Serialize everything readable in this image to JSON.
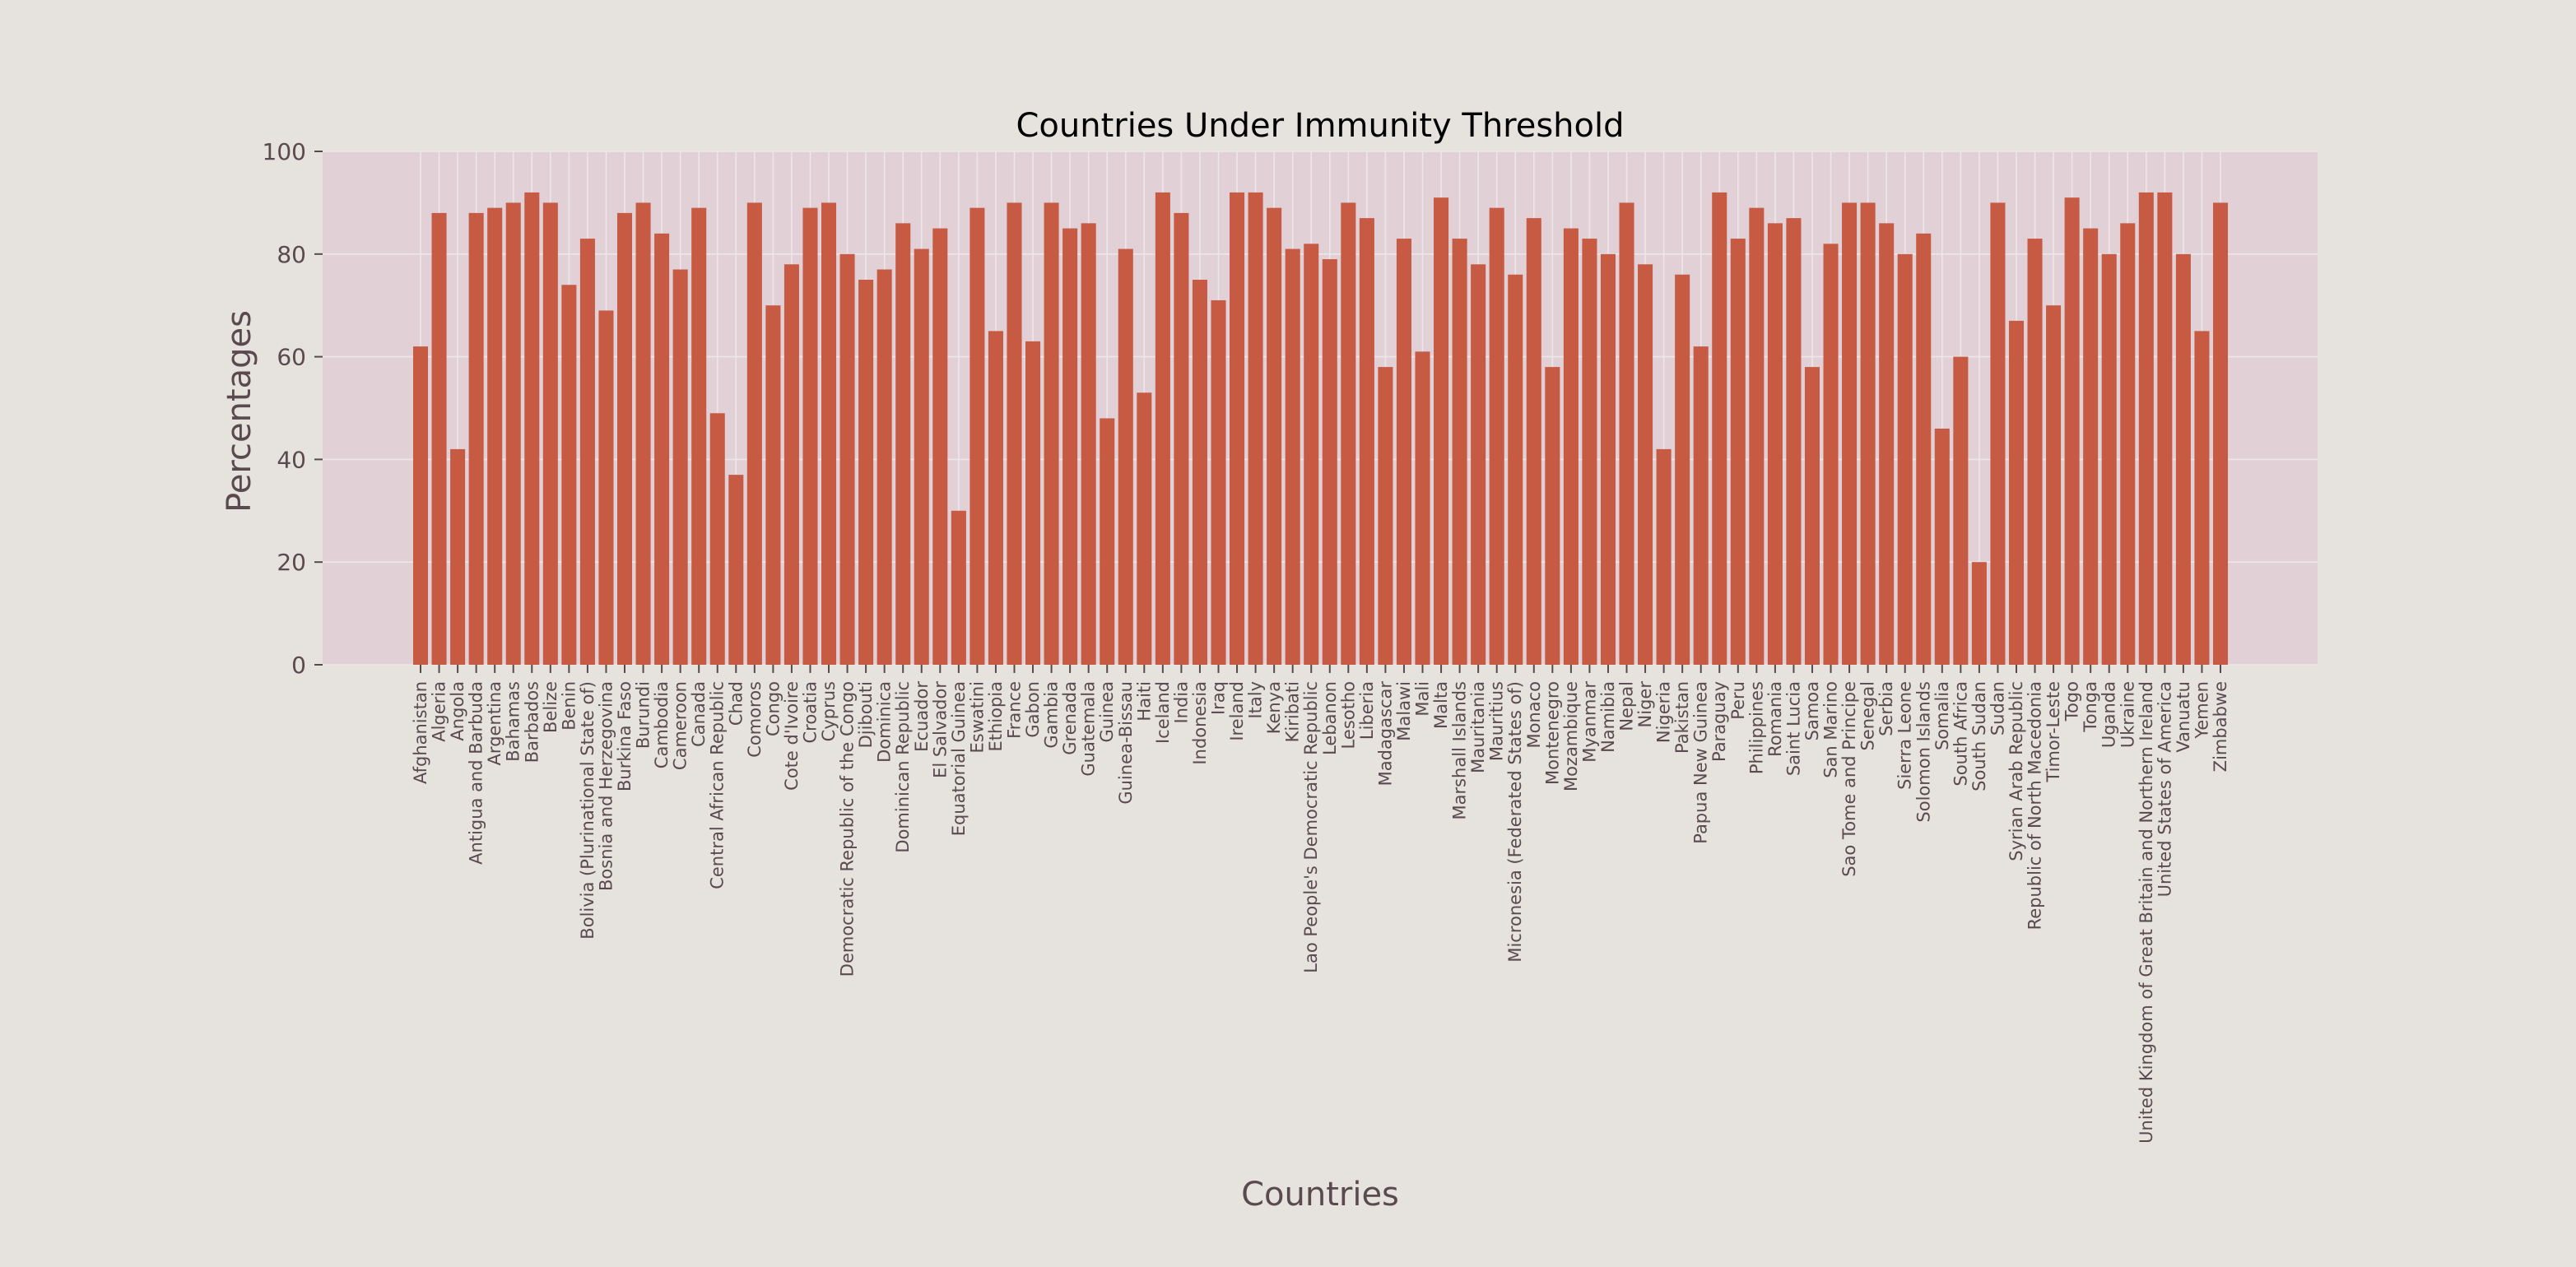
{
  "chart_data": {
    "type": "bar",
    "title": "Countries Under Immunity Threshold",
    "xlabel": "Countries",
    "ylabel": "Percentages",
    "ylim": [
      0,
      100
    ],
    "yticks": [
      0,
      20,
      40,
      60,
      80,
      100
    ],
    "grid": true,
    "categories": [
      "Afghanistan",
      "Algeria",
      "Angola",
      "Antigua and Barbuda",
      "Argentina",
      "Bahamas",
      "Barbados",
      "Belize",
      "Benin",
      "Bolivia (Plurinational State of)",
      "Bosnia and Herzegovina",
      "Burkina Faso",
      "Burundi",
      "Cambodia",
      "Cameroon",
      "Canada",
      "Central African Republic",
      "Chad",
      "Comoros",
      "Congo",
      "Cote d'Ivoire",
      "Croatia",
      "Cyprus",
      "Democratic Republic of the Congo",
      "Djibouti",
      "Dominica",
      "Dominican Republic",
      "Ecuador",
      "El Salvador",
      "Equatorial Guinea",
      "Eswatini",
      "Ethiopia",
      "France",
      "Gabon",
      "Gambia",
      "Grenada",
      "Guatemala",
      "Guinea",
      "Guinea-Bissau",
      "Haiti",
      "Iceland",
      "India",
      "Indonesia",
      "Iraq",
      "Ireland",
      "Italy",
      "Kenya",
      "Kiribati",
      "Lao People's Democratic Republic",
      "Lebanon",
      "Lesotho",
      "Liberia",
      "Madagascar",
      "Malawi",
      "Mali",
      "Malta",
      "Marshall Islands",
      "Mauritania",
      "Mauritius",
      "Micronesia (Federated States of)",
      "Monaco",
      "Montenegro",
      "Mozambique",
      "Myanmar",
      "Namibia",
      "Nepal",
      "Niger",
      "Nigeria",
      "Pakistan",
      "Papua New Guinea",
      "Paraguay",
      "Peru",
      "Philippines",
      "Romania",
      "Saint Lucia",
      "Samoa",
      "San Marino",
      "Sao Tome and Principe",
      "Senegal",
      "Serbia",
      "Sierra Leone",
      "Solomon Islands",
      "Somalia",
      "South Africa",
      "South Sudan",
      "Sudan",
      "Syrian Arab Republic",
      "Republic of North Macedonia",
      "Timor-Leste",
      "Togo",
      "Tonga",
      "Uganda",
      "Ukraine",
      "United Kingdom of Great Britain and Northern Ireland",
      "United States of America",
      "Vanuatu",
      "Yemen",
      "Zimbabwe"
    ],
    "values": [
      62,
      88,
      42,
      88,
      89,
      90,
      92,
      90,
      74,
      83,
      69,
      88,
      90,
      84,
      77,
      89,
      49,
      37,
      90,
      70,
      78,
      89,
      90,
      80,
      75,
      77,
      86,
      81,
      85,
      30,
      89,
      65,
      90,
      63,
      90,
      85,
      86,
      48,
      81,
      53,
      92,
      88,
      75,
      71,
      92,
      92,
      89,
      81,
      82,
      79,
      90,
      87,
      58,
      83,
      61,
      91,
      83,
      78,
      89,
      76,
      87,
      58,
      85,
      83,
      80,
      90,
      78,
      42,
      76,
      62,
      92,
      83,
      89,
      86,
      87,
      58,
      82,
      90,
      90,
      86,
      80,
      84,
      46,
      60,
      20,
      90,
      67,
      83,
      70,
      91,
      85,
      80,
      86,
      92,
      92,
      80,
      65,
      90
    ],
    "colors": {
      "bar": "#c65a43",
      "plot_bg": "#e1d0d6",
      "page_bg": "#e6e3de",
      "grid": "#ede7ea",
      "text": "#5a4a4f",
      "title": "#000000"
    }
  }
}
